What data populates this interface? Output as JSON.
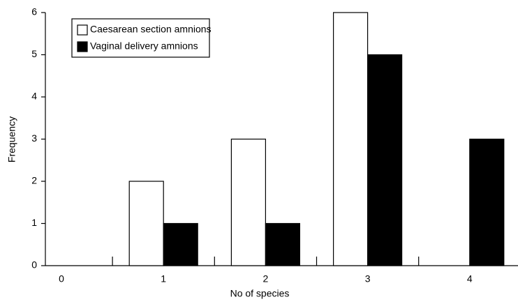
{
  "chart_data": {
    "type": "bar",
    "x_label": "No of species",
    "y_label": "Frequency",
    "categories": [
      "0",
      "1",
      "2",
      "3",
      "4"
    ],
    "series": [
      {
        "name": "Caesarean section amnions",
        "color": "#ffffff",
        "values": [
          0,
          2,
          3,
          6,
          0
        ]
      },
      {
        "name": "Vaginal delivery amnions",
        "color": "#000000",
        "values": [
          0,
          1,
          1,
          5,
          3
        ]
      }
    ],
    "ylim": [
      0,
      6
    ],
    "yticks": [
      0,
      1,
      2,
      3,
      4,
      5,
      6
    ],
    "legend": "upper left"
  }
}
